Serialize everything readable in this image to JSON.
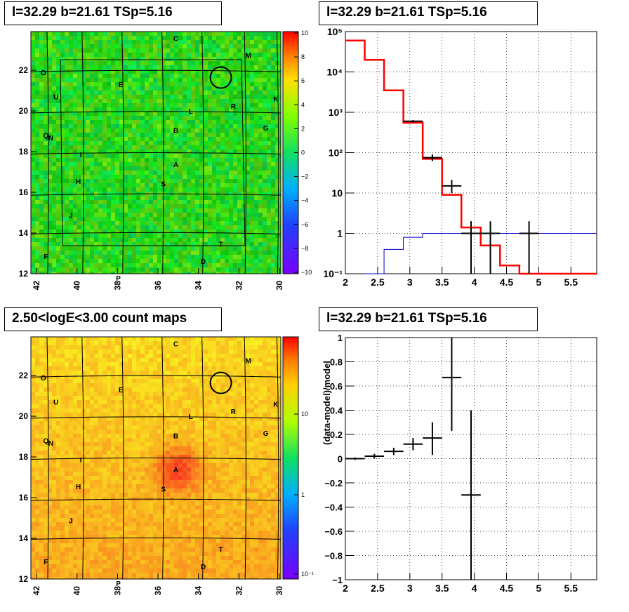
{
  "panels": {
    "tl": {
      "title": "l=32.29 b=21.61 TSp=5.16",
      "map": {
        "xticks": [
          "42",
          "40",
          "38",
          "36",
          "34",
          "32",
          "30"
        ],
        "yticks": [
          "12",
          "14",
          "16",
          "18",
          "20",
          "22"
        ],
        "colorbar_ticks": [
          "10",
          "8",
          "6",
          "4",
          "2",
          "0",
          "−2",
          "−4",
          "−6",
          "−8",
          "−10"
        ],
        "labels": [
          "C",
          "M",
          "O",
          "E",
          "U",
          "K",
          "R",
          "L",
          "G",
          "B",
          "Q",
          "N",
          "I",
          "A",
          "H",
          "S",
          "J",
          "T",
          "F",
          "D",
          "P"
        ]
      }
    },
    "tr": {
      "title": "l=32.29 b=21.61 TSp=5.16",
      "chart_data": {
        "type": "line",
        "xlim": [
          2,
          5.9
        ],
        "ylim": [
          0.1,
          100000
        ],
        "log_y": true,
        "grid": true,
        "xticks": [
          "2",
          "2.5",
          "3",
          "3.5",
          "4",
          "4.5",
          "5",
          "5.5"
        ],
        "yticks": [
          "10⁻¹",
          "1",
          "10",
          "10²",
          "10³",
          "10⁴",
          "10⁵"
        ],
        "series": [
          {
            "role": "model",
            "color": "#ff0000",
            "step_edges": [
              2,
              2.3,
              2.6,
              2.9,
              3.2,
              3.5,
              3.8,
              4.1,
              4.4,
              4.7,
              5.0,
              5.9
            ],
            "step_values": [
              60000,
              20000,
              3500,
              550,
              70,
              9,
              1.4,
              0.5,
              0.16,
              0.1,
              0.1
            ]
          },
          {
            "role": "background",
            "color": "#0000cc",
            "step_edges": [
              2.3,
              2.6,
              2.9,
              3.2,
              3.5,
              5.9
            ],
            "step_values": [
              0.1,
              0.4,
              0.8,
              1.0,
              1.0
            ]
          },
          {
            "role": "data",
            "color": "#000000",
            "points": [
              {
                "x": 3.05,
                "xerr": 0.15,
                "y": 600,
                "ylo": 560,
                "yhi": 640
              },
              {
                "x": 3.35,
                "xerr": 0.15,
                "y": 75,
                "ylo": 62,
                "yhi": 90
              },
              {
                "x": 3.65,
                "xerr": 0.15,
                "y": 15,
                "ylo": 10,
                "yhi": 21
              },
              {
                "x": 3.95,
                "xerr": 0.15,
                "y": 1,
                "ylo": 0.1,
                "yhi": 2
              },
              {
                "x": 4.25,
                "xerr": 0.15,
                "y": 1,
                "ylo": 0.1,
                "yhi": 2
              },
              {
                "x": 4.85,
                "xerr": 0.15,
                "y": 1,
                "ylo": 0.1,
                "yhi": 2
              }
            ]
          }
        ]
      }
    },
    "bl": {
      "title": "2.50<logE<3.00 count maps",
      "map": {
        "xticks": [
          "42",
          "40",
          "38",
          "36",
          "34",
          "32",
          "30"
        ],
        "yticks": [
          "12",
          "14",
          "16",
          "18",
          "20",
          "22"
        ],
        "colorbar_ticks": [
          "10",
          "1",
          "10⁻¹"
        ],
        "labels": [
          "C",
          "M",
          "O",
          "E",
          "U",
          "K",
          "R",
          "L",
          "G",
          "B",
          "Q",
          "N",
          "I",
          "A",
          "H",
          "S",
          "J",
          "T",
          "F",
          "D",
          "P"
        ]
      }
    },
    "br": {
      "title": "l=32.29 b=21.61 TSp=5.16",
      "chart_data": {
        "type": "scatter",
        "ylabel": "(data-model)/model",
        "xlim": [
          2,
          5.9
        ],
        "ylim": [
          -1,
          1
        ],
        "grid": true,
        "xticks": [
          "2",
          "2.5",
          "3",
          "3.5",
          "4",
          "4.5",
          "5",
          "5.5"
        ],
        "yticks": [
          "−1",
          "−0.8",
          "−0.6",
          "−0.4",
          "−0.2",
          "0",
          "0.2",
          "0.4",
          "0.6",
          "0.8",
          "1"
        ],
        "points": [
          {
            "x": 2.15,
            "xerr": 0.15,
            "y": 0.0,
            "ylo": -0.01,
            "yhi": 0.01
          },
          {
            "x": 2.45,
            "xerr": 0.15,
            "y": 0.02,
            "ylo": 0.0,
            "yhi": 0.04
          },
          {
            "x": 2.75,
            "xerr": 0.15,
            "y": 0.06,
            "ylo": 0.03,
            "yhi": 0.09
          },
          {
            "x": 3.05,
            "xerr": 0.15,
            "y": 0.12,
            "ylo": 0.07,
            "yhi": 0.17
          },
          {
            "x": 3.35,
            "xerr": 0.15,
            "y": 0.17,
            "ylo": 0.03,
            "yhi": 0.3
          },
          {
            "x": 3.65,
            "xerr": 0.15,
            "y": 0.67,
            "ylo": 0.23,
            "yhi": 1.0
          },
          {
            "x": 3.95,
            "xerr": 0.15,
            "y": -0.3,
            "ylo": -1.0,
            "yhi": 0.4
          }
        ]
      }
    }
  }
}
